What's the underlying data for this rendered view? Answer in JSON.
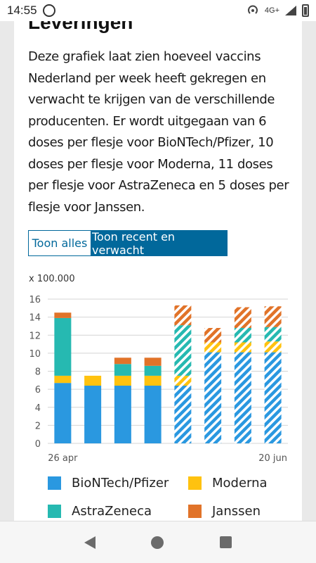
{
  "status_bar": {
    "time": "14:55",
    "network": "4G+",
    "icons": [
      "whatsapp-icon",
      "hotspot-icon",
      "signal-icon",
      "battery-icon"
    ]
  },
  "section": {
    "heading": "Leveringen",
    "description": "Deze grafiek laat zien hoeveel vaccins Nederland per week heeft gekregen en verwacht te krijgen van de verschillende producenten. Er wordt uitgegaan van 6 doses per flesje voor BioNTech/Pfizer, 10 doses per flesje voor Moderna, 11 doses per flesje voor AstraZeneca en 5 doses per flesje voor Janssen."
  },
  "toggle": {
    "show_all_label": "Toon alles",
    "show_recent_label": "Toon recent en verwacht",
    "selected": "recent"
  },
  "chart_data": {
    "type": "bar",
    "stacked": true,
    "unit_label": "x 100.000",
    "ylim": [
      0,
      16
    ],
    "yticks": [
      "0",
      "2",
      "4",
      "6",
      "8",
      "10",
      "12",
      "14",
      "16"
    ],
    "x_labels": [
      {
        "index": 0,
        "label": "26 apr"
      },
      {
        "index": 7,
        "label": "20 jun"
      }
    ],
    "weeks": 8,
    "expected_from_index": 4,
    "series": [
      {
        "name": "BioNTech/Pfizer",
        "color": "#2a98e0",
        "values": [
          6.7,
          6.4,
          6.4,
          6.4,
          6.4,
          10.1,
          10.1,
          10.1
        ]
      },
      {
        "name": "Moderna",
        "color": "#ffc20f",
        "values": [
          0.8,
          1.1,
          1.1,
          1.1,
          1.1,
          1.1,
          1.1,
          1.2
        ]
      },
      {
        "name": "AstraZeneca",
        "color": "#26b9b1",
        "values": [
          6.4,
          0,
          1.3,
          1.1,
          5.6,
          0,
          1.6,
          1.6
        ]
      },
      {
        "name": "Janssen",
        "color": "#e17329",
        "values": [
          0.6,
          0,
          0.7,
          0.9,
          2.2,
          1.6,
          2.3,
          2.3
        ]
      }
    ]
  },
  "navigation": {
    "back": "back-icon",
    "home": "home-icon",
    "recents": "recents-icon"
  }
}
